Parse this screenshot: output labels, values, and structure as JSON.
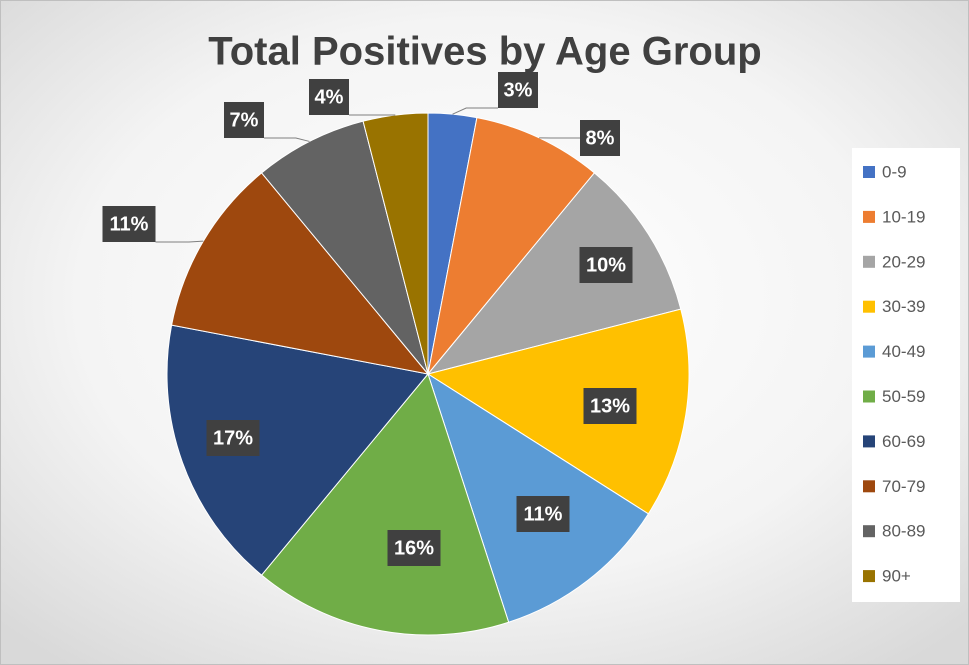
{
  "chart_data": {
    "type": "pie",
    "title": "Total Positives by Age Group",
    "categories": [
      "0-9",
      "10-19",
      "20-29",
      "30-39",
      "40-49",
      "50-59",
      "60-69",
      "70-79",
      "80-89",
      "90+"
    ],
    "values": [
      3,
      8,
      10,
      13,
      11,
      16,
      17,
      11,
      7,
      4
    ],
    "value_labels": [
      "3%",
      "8%",
      "10%",
      "13%",
      "11%",
      "16%",
      "17%",
      "11%",
      "7%",
      "4%"
    ],
    "colors": [
      "#4472c4",
      "#ed7d31",
      "#a5a5a5",
      "#ffc000",
      "#5b9bd5",
      "#70ad47",
      "#264478",
      "#9e480e",
      "#636363",
      "#997300"
    ],
    "legend": "right"
  }
}
